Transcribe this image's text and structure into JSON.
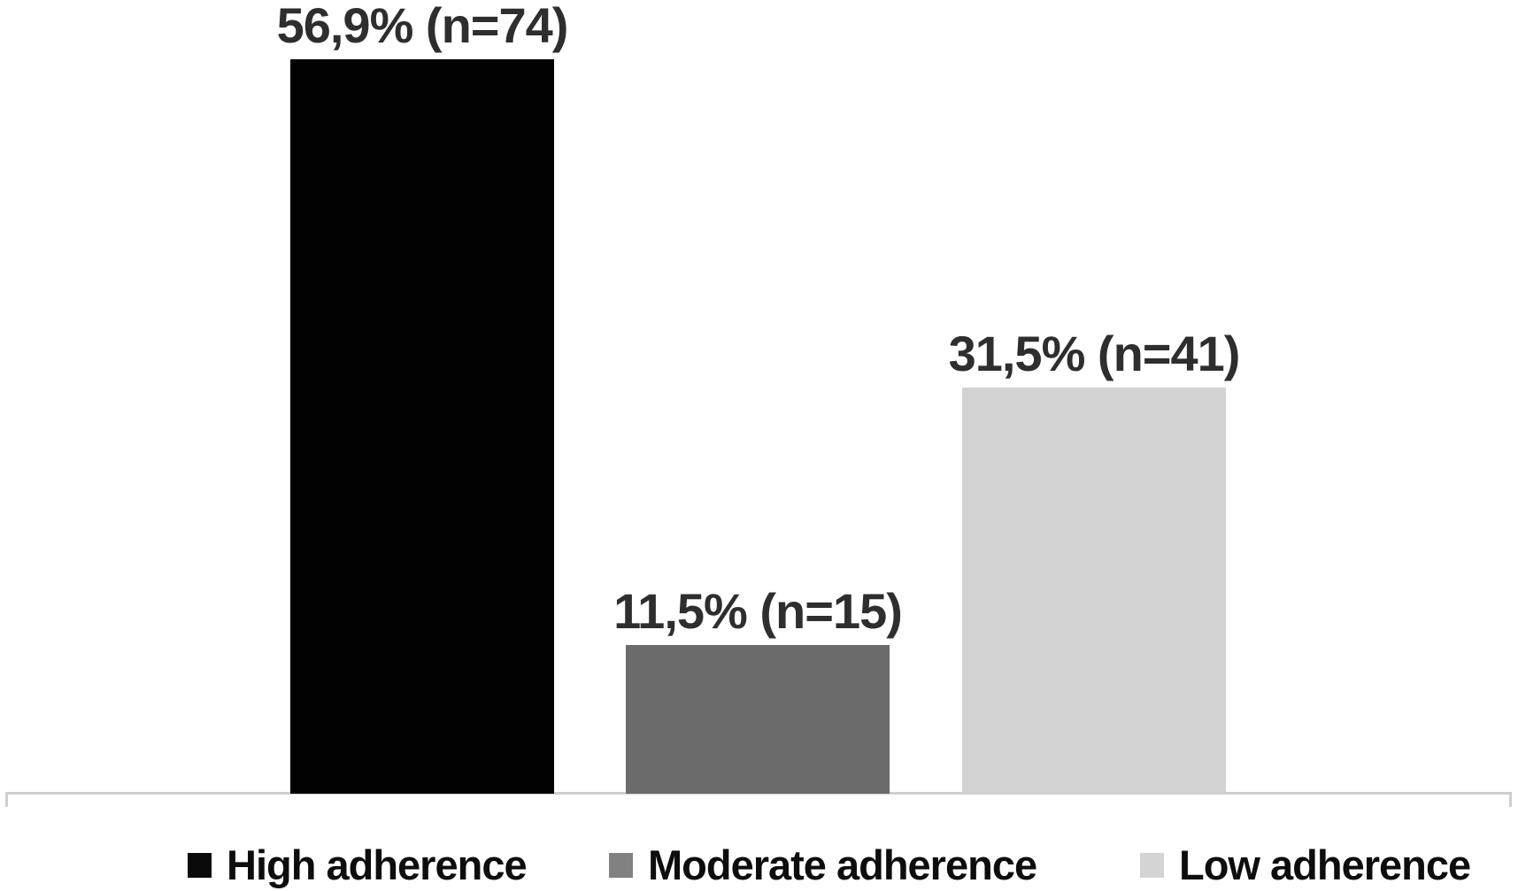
{
  "chart_data": {
    "type": "bar",
    "title": "",
    "xlabel": "",
    "ylabel": "",
    "categories": [
      "High adherence",
      "Moderate adherence",
      "Low adherence"
    ],
    "values": [
      56.9,
      11.5,
      31.5
    ],
    "counts": [
      74,
      15,
      41
    ],
    "bar_labels": [
      "56,9% (n=74)",
      "11,5% (n=15)",
      "31,5% (n=41)"
    ],
    "colors": [
      "#020202",
      "#6b6b6b",
      "#d2d2d2"
    ],
    "legend": [
      {
        "label": "High adherence",
        "color": "#0a0a0a"
      },
      {
        "label": "Moderate adherence",
        "color": "#818181"
      },
      {
        "label": "Low adherence",
        "color": "#d4d4d4"
      }
    ],
    "legend_position": "bottom",
    "grid": false,
    "y_axis_visible": false,
    "x_axis_line_color": "#cfcfcf",
    "background": "#ffffff",
    "ylim": [
      0,
      60
    ]
  }
}
